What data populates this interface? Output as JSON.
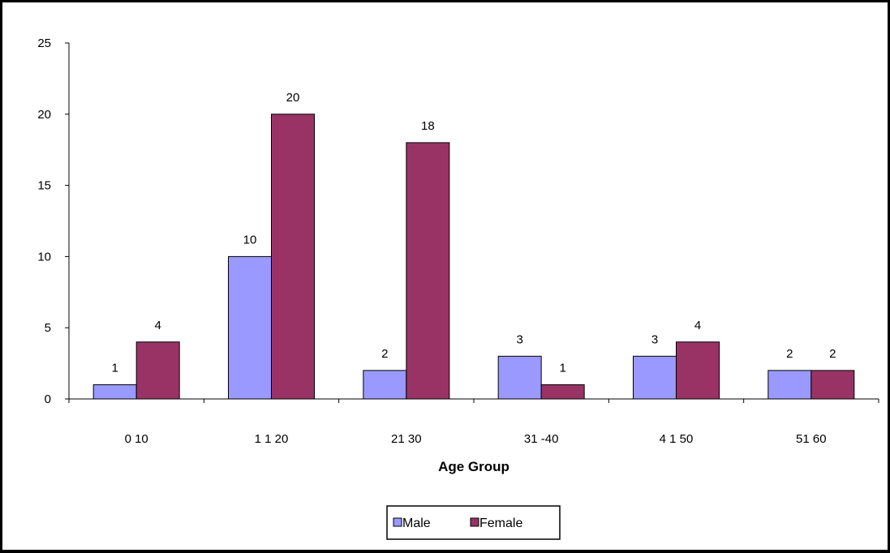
{
  "chart_data": {
    "type": "bar",
    "categories": [
      "0 10",
      "1 1 20",
      "21 30",
      "31 -40",
      "4 1 50",
      "51 60"
    ],
    "series": [
      {
        "name": "Male",
        "values": [
          1,
          10,
          2,
          3,
          3,
          2
        ],
        "color": "#9999ff",
        "labels": [
          "1",
          "10",
          "2",
          "3",
          "3",
          "2"
        ]
      },
      {
        "name": "Female",
        "values": [
          4,
          20,
          18,
          1,
          4,
          2
        ],
        "color": "#993366",
        "labels": [
          "4",
          "20",
          "18",
          "1",
          "4",
          "2"
        ]
      }
    ],
    "xlabel": "Age Group",
    "ylabel": "",
    "ylim": [
      0,
      25
    ],
    "yticks": [
      0,
      5,
      10,
      15,
      20,
      25
    ],
    "ytick_labels": [
      "0",
      "5",
      "10",
      "15",
      "20",
      "25"
    ],
    "grid": false,
    "legend_position": "bottom"
  },
  "colors": {
    "male": "#9999ff",
    "female": "#993366",
    "axis": "#000000"
  }
}
